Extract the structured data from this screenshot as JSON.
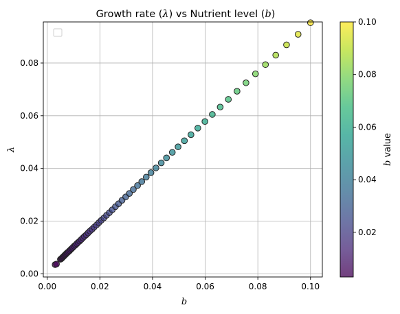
{
  "chart_data": {
    "type": "scatter",
    "title": {
      "pre": "Growth rate (",
      "sym1": "λ",
      "mid": ") vs Nutrient level (",
      "sym2": "b",
      "post": ")"
    },
    "xlabel": "b",
    "ylabel": "λ",
    "xlim": [
      -0.0015,
      0.1045
    ],
    "ylim": [
      -0.0012,
      0.0956
    ],
    "xticks": [
      0.0,
      0.02,
      0.04,
      0.06,
      0.08,
      0.1
    ],
    "xtick_labels": [
      "0.00",
      "0.02",
      "0.04",
      "0.06",
      "0.08",
      "0.10"
    ],
    "yticks": [
      0.0,
      0.02,
      0.04,
      0.06,
      0.08
    ],
    "ytick_labels": [
      "0.00",
      "0.02",
      "0.04",
      "0.06",
      "0.08"
    ],
    "grid": true,
    "legend": "top-left (empty)",
    "colorbar": {
      "label_sym": "b",
      "label_text": " value",
      "range": [
        0.003,
        0.1
      ],
      "ticks": [
        0.02,
        0.04,
        0.06,
        0.08,
        0.1
      ],
      "tick_labels": [
        "0.02",
        "0.04",
        "0.06",
        "0.08",
        "0.10"
      ],
      "colormap": "viridis"
    },
    "marker_alpha": 0.75,
    "edge_color": "#222222",
    "colormap_stops": [
      "#440154",
      "#482878",
      "#3e4989",
      "#31688e",
      "#26828e",
      "#1f9e89",
      "#35b779",
      "#6ece58",
      "#b5de2b",
      "#fde725"
    ],
    "points": [
      [
        0.003,
        0.0035
      ],
      [
        0.0035,
        0.0037
      ],
      [
        0.005,
        0.0055
      ],
      [
        0.0053,
        0.0057
      ],
      [
        0.0056,
        0.006
      ],
      [
        0.0059,
        0.0063
      ],
      [
        0.0062,
        0.0066
      ],
      [
        0.0065,
        0.0069
      ],
      [
        0.0068,
        0.0072
      ],
      [
        0.0071,
        0.0075
      ],
      [
        0.0074,
        0.0078
      ],
      [
        0.0077,
        0.0081
      ],
      [
        0.0081,
        0.0084
      ],
      [
        0.0085,
        0.0088
      ],
      [
        0.0089,
        0.0092
      ],
      [
        0.0093,
        0.0096
      ],
      [
        0.0097,
        0.01
      ],
      [
        0.0102,
        0.0105
      ],
      [
        0.0107,
        0.0109
      ],
      [
        0.0112,
        0.0114
      ],
      [
        0.0117,
        0.0119
      ],
      [
        0.0123,
        0.0124
      ],
      [
        0.0129,
        0.013
      ],
      [
        0.0135,
        0.0136
      ],
      [
        0.0141,
        0.0142
      ],
      [
        0.0148,
        0.0148
      ],
      [
        0.0155,
        0.0155
      ],
      [
        0.0162,
        0.0162
      ],
      [
        0.017,
        0.0169
      ],
      [
        0.0178,
        0.0177
      ],
      [
        0.0187,
        0.0185
      ],
      [
        0.0196,
        0.0194
      ],
      [
        0.0205,
        0.0203
      ],
      [
        0.0215,
        0.0212
      ],
      [
        0.0225,
        0.0222
      ],
      [
        0.0236,
        0.0232
      ],
      [
        0.0247,
        0.0243
      ],
      [
        0.0259,
        0.0255
      ],
      [
        0.0271,
        0.0266
      ],
      [
        0.0284,
        0.0279
      ],
      [
        0.0298,
        0.0292
      ],
      [
        0.0312,
        0.0305
      ],
      [
        0.0327,
        0.032
      ],
      [
        0.0343,
        0.0335
      ],
      [
        0.0359,
        0.035
      ],
      [
        0.0376,
        0.0367
      ],
      [
        0.0394,
        0.0384
      ],
      [
        0.0413,
        0.0402
      ],
      [
        0.0433,
        0.0421
      ],
      [
        0.0453,
        0.044
      ],
      [
        0.0475,
        0.0461
      ],
      [
        0.0497,
        0.0482
      ],
      [
        0.0521,
        0.0505
      ],
      [
        0.0546,
        0.0528
      ],
      [
        0.0572,
        0.0553
      ],
      [
        0.0599,
        0.0578
      ],
      [
        0.0627,
        0.0605
      ],
      [
        0.0657,
        0.0633
      ],
      [
        0.0688,
        0.0662
      ],
      [
        0.0721,
        0.0693
      ],
      [
        0.0755,
        0.0725
      ],
      [
        0.0791,
        0.0759
      ],
      [
        0.0829,
        0.0794
      ],
      [
        0.0868,
        0.083
      ],
      [
        0.0909,
        0.0869
      ],
      [
        0.0953,
        0.0909
      ],
      [
        0.1,
        0.0953
      ]
    ]
  }
}
